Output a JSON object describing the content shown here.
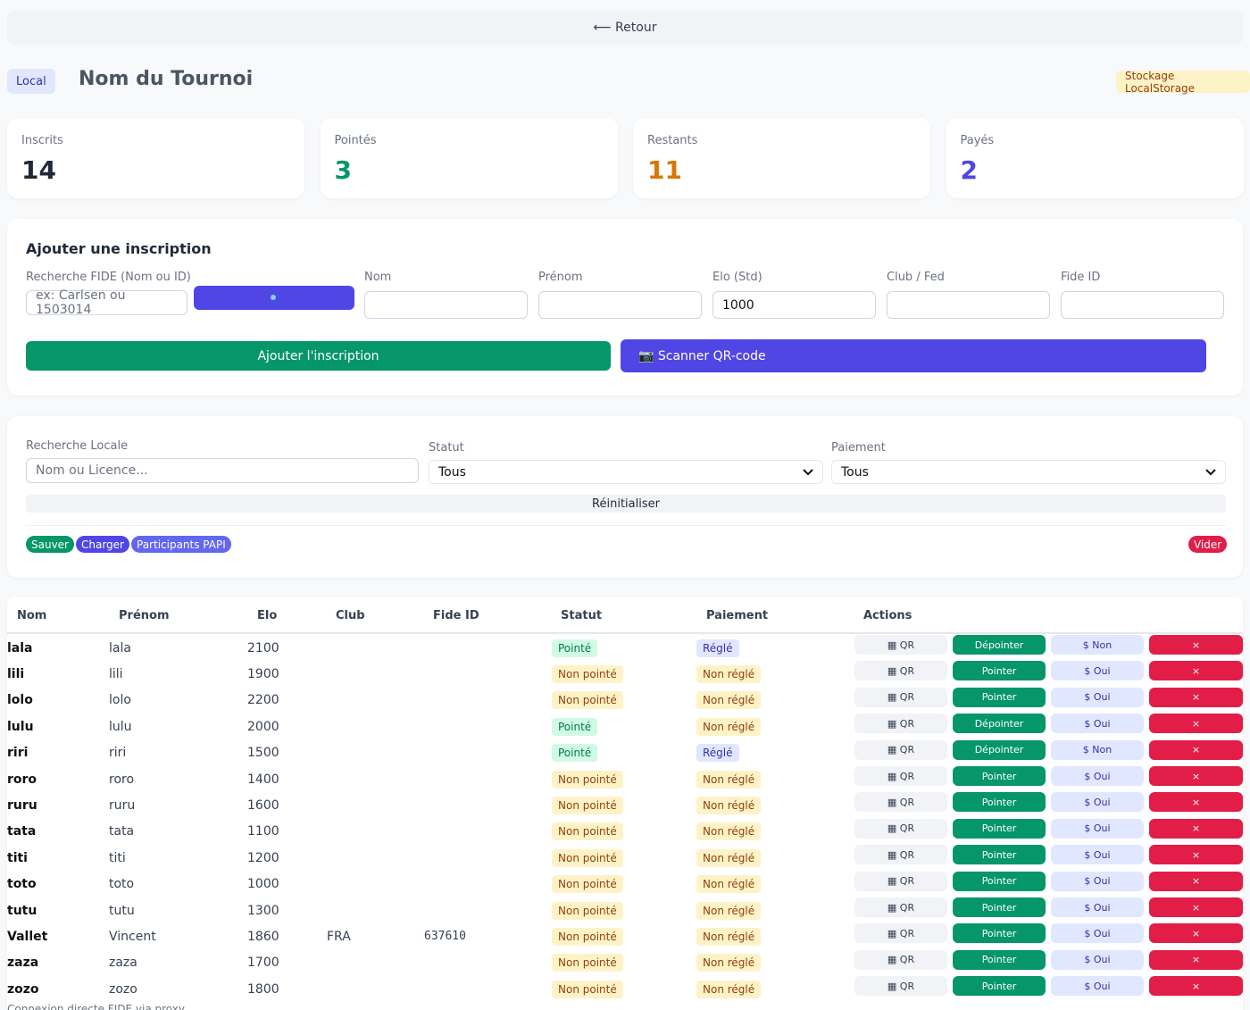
{
  "back": "⟵ Retour",
  "header": {
    "badge": "Local",
    "title": "Nom du Tournoi",
    "storage": "Stockage LocalStorage"
  },
  "stats": [
    {
      "label": "Inscrits",
      "value": 14,
      "color": "#1f2937"
    },
    {
      "label": "Pointés",
      "value": 3,
      "color": "#059669"
    },
    {
      "label": "Restants",
      "value": 11,
      "color": "#d97706"
    },
    {
      "label": "Payés",
      "value": 2,
      "color": "#4f46e5"
    }
  ],
  "form": {
    "title": "Ajouter une inscription",
    "search": {
      "label": "Recherche FIDE (Nom ou ID)",
      "placeholder": "ex: Carlsen ou 1503014"
    },
    "fields": [
      {
        "label": "Nom"
      },
      {
        "label": "Prénom"
      },
      {
        "label": "Elo (Std)",
        "value": "1000"
      },
      {
        "label": "Club / Fed"
      },
      {
        "label": "Fide ID"
      }
    ],
    "add_button": "Ajouter l'inscription",
    "scan_button": "📷 Scanner QR-code"
  },
  "filters": {
    "search": {
      "label": "Recherche Locale",
      "placeholder": "Nom ou Licence..."
    },
    "status": {
      "label": "Statut",
      "value": "Tous"
    },
    "payment": {
      "label": "Paiement",
      "value": "Tous"
    },
    "reset": "Réinitialiser",
    "buttons": [
      "Sauver",
      "Charger",
      "Participants PAPI"
    ],
    "clear": "Vider"
  },
  "table": {
    "columns": [
      "Nom",
      "Prénom",
      "Elo",
      "Club",
      "Fide ID",
      "Statut",
      "Paiement",
      "Actions"
    ],
    "qr_label": "▦ QR",
    "delete_label": "×",
    "rows": [
      [
        "lala",
        "lala",
        2100,
        null,
        null,
        "Pointé",
        "Réglé",
        "Dépointer",
        "$ Non"
      ],
      [
        "lili",
        "lili",
        1900,
        null,
        null,
        "Non pointé",
        "Non réglé",
        "Pointer",
        "$ Oui"
      ],
      [
        "lolo",
        "lolo",
        2200,
        null,
        null,
        "Non pointé",
        "Non réglé",
        "Pointer",
        "$ Oui"
      ],
      [
        "lulu",
        "lulu",
        2000,
        null,
        null,
        "Pointé",
        "Non réglé",
        "Dépointer",
        "$ Oui"
      ],
      [
        "riri",
        "riri",
        1500,
        null,
        null,
        "Pointé",
        "Réglé",
        "Dépointer",
        "$ Non"
      ],
      [
        "roro",
        "roro",
        1400,
        null,
        null,
        "Non pointé",
        "Non réglé",
        "Pointer",
        "$ Oui"
      ],
      [
        "ruru",
        "ruru",
        1600,
        null,
        null,
        "Non pointé",
        "Non réglé",
        "Pointer",
        "$ Oui"
      ],
      [
        "tata",
        "tata",
        1100,
        null,
        null,
        "Non pointé",
        "Non réglé",
        "Pointer",
        "$ Oui"
      ],
      [
        "titi",
        "titi",
        1200,
        null,
        null,
        "Non pointé",
        "Non réglé",
        "Pointer",
        "$ Oui"
      ],
      [
        "toto",
        "toto",
        1000,
        null,
        null,
        "Non pointé",
        "Non réglé",
        "Pointer",
        "$ Oui"
      ],
      [
        "tutu",
        "tutu",
        1300,
        null,
        null,
        "Non pointé",
        "Non réglé",
        "Pointer",
        "$ Oui"
      ],
      [
        "Vallet",
        "Vincent",
        1860,
        "FRA",
        637610,
        "Non pointé",
        "Non réglé",
        "Pointer",
        "$ Oui"
      ],
      [
        "zaza",
        "zaza",
        1700,
        null,
        null,
        "Non pointé",
        "Non réglé",
        "Pointer",
        "$ Oui"
      ],
      [
        "zozo",
        "zozo",
        1800,
        null,
        null,
        "Non pointé",
        "Non réglé",
        "Pointer",
        "$ Oui"
      ]
    ]
  },
  "footer": "Connexion directe FIDE via proxy"
}
